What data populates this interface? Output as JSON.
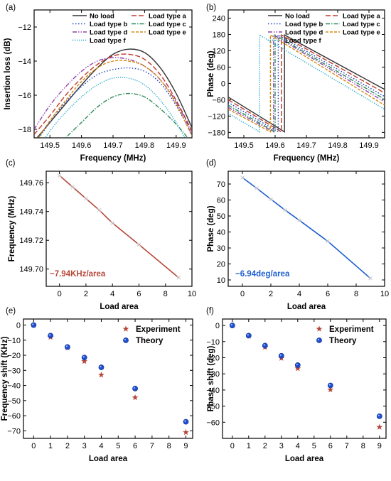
{
  "chart_data": [
    {
      "panel": "(a)",
      "type": "line",
      "xlabel": "Frequency (MHz)",
      "ylabel": "Insertion loss (dB)",
      "xlim": [
        149.45,
        149.95
      ],
      "ylim": [
        -18.5,
        -11.0
      ],
      "xticks": [
        149.5,
        149.6,
        149.7,
        149.8,
        149.9
      ],
      "yticks": [
        -18,
        -16,
        -14,
        -12
      ],
      "x": [
        149.45,
        149.5,
        149.55,
        149.6,
        149.65,
        149.7,
        149.75,
        149.8,
        149.85,
        149.9,
        149.95
      ],
      "legend": "top-right",
      "series": [
        {
          "name": "No load",
          "color": "#333333",
          "dash": "solid",
          "values": [
            -18.7,
            -17.6,
            -16.5,
            -15.4,
            -14.4,
            -13.6,
            -13.3,
            -13.5,
            -14.4,
            -15.9,
            -17.9
          ]
        },
        {
          "name": "Load type a",
          "color": "#c0392b",
          "dash": "longdash",
          "values": [
            -18.3,
            -17.2,
            -16.0,
            -15.0,
            -14.2,
            -13.7,
            -13.6,
            -13.9,
            -14.8,
            -16.3,
            -18.1
          ]
        },
        {
          "name": "Load type b",
          "color": "#1f3fbf",
          "dash": "dot",
          "values": [
            -18.9,
            -17.6,
            -16.4,
            -15.5,
            -14.8,
            -14.5,
            -14.4,
            -14.6,
            -15.3,
            -16.6,
            -18.3
          ]
        },
        {
          "name": "Load type c",
          "color": "#2e8b57",
          "dash": "dashdot",
          "values": [
            -20.5,
            -19.5,
            -18.5,
            -17.6,
            -16.7,
            -16.1,
            -15.9,
            -16.1,
            -16.8,
            -17.7,
            -18.8
          ]
        },
        {
          "name": "Load type d",
          "color": "#8e44ad",
          "dash": "dashdotdot",
          "values": [
            -18.0,
            -16.6,
            -15.5,
            -14.6,
            -14.0,
            -13.8,
            -13.9,
            -14.3,
            -15.1,
            -16.4,
            -18.2
          ]
        },
        {
          "name": "Load type e",
          "color": "#d68910",
          "dash": "shortdash",
          "values": [
            -18.9,
            -17.5,
            -16.3,
            -15.2,
            -14.4,
            -14.0,
            -14.0,
            -14.3,
            -15.1,
            -16.5,
            -18.4
          ]
        },
        {
          "name": "Load type f",
          "color": "#1aa6c9",
          "dash": "shortdot",
          "values": [
            -19.5,
            -18.1,
            -17.0,
            -16.1,
            -15.4,
            -15.0,
            -15.0,
            -15.4,
            -16.3,
            -17.6,
            -19.3
          ]
        }
      ]
    },
    {
      "panel": "(b)",
      "type": "line",
      "xlabel": "Frequency (MHz)",
      "ylabel": "Phase (deg)",
      "xlim": [
        149.45,
        149.95
      ],
      "ylim": [
        -200,
        270
      ],
      "xticks": [
        149.5,
        149.6,
        149.7,
        149.8,
        149.9
      ],
      "yticks": [
        -180,
        -120,
        -60,
        0,
        60,
        120,
        180,
        240
      ],
      "legend": "top-right",
      "series": [
        {
          "name": "No load",
          "color": "#333333",
          "dash": "solid",
          "jump": 149.63,
          "start": -50,
          "low": -178,
          "high": 178,
          "end": -22
        },
        {
          "name": "Load type a",
          "color": "#c0392b",
          "dash": "longdash",
          "jump": 149.62,
          "start": -60,
          "low": -178,
          "high": 178,
          "end": -35
        },
        {
          "name": "Load type b",
          "color": "#1f3fbf",
          "dash": "dot",
          "jump": 149.61,
          "start": -70,
          "low": -178,
          "high": 178,
          "end": -48
        },
        {
          "name": "Load type c",
          "color": "#2e8b57",
          "dash": "dashdot",
          "jump": 149.6,
          "start": -80,
          "low": -178,
          "high": 178,
          "end": -58
        },
        {
          "name": "Load type d",
          "color": "#8e44ad",
          "dash": "dashdotdot",
          "jump": 149.595,
          "start": -88,
          "low": -178,
          "high": 178,
          "end": -68
        },
        {
          "name": "Load type e",
          "color": "#d68910",
          "dash": "shortdash",
          "jump": 149.585,
          "start": -95,
          "low": -178,
          "high": 178,
          "end": -80
        },
        {
          "name": "Load type f",
          "color": "#1aa6c9",
          "dash": "shortdot",
          "jump": 149.55,
          "start": -110,
          "low": -178,
          "high": 178,
          "end": -95
        }
      ]
    },
    {
      "panel": "(c)",
      "type": "line",
      "xlabel": "Load area",
      "ylabel": "Frequency (MHz)",
      "xlim": [
        -1,
        10
      ],
      "ylim": [
        149.688,
        149.768
      ],
      "xticks": [
        0,
        2,
        4,
        6,
        8,
        10
      ],
      "yticks": [
        149.7,
        149.72,
        149.74,
        149.76
      ],
      "x": [
        0,
        1,
        2,
        3,
        4,
        6,
        9
      ],
      "series": [
        {
          "name": "",
          "color": "#b5473a",
          "values": [
            149.765,
            149.757,
            149.749,
            149.741,
            149.732,
            149.717,
            149.694
          ]
        }
      ],
      "annotation": "−7.94KHz/area"
    },
    {
      "panel": "(d)",
      "type": "line",
      "xlabel": "Load area",
      "ylabel": "Phase (deg)",
      "xlim": [
        -1,
        10
      ],
      "ylim": [
        6,
        78
      ],
      "xticks": [
        0,
        2,
        4,
        6,
        8,
        10
      ],
      "yticks": [
        10,
        20,
        30,
        40,
        50,
        60,
        70
      ],
      "x": [
        0,
        1,
        2,
        3,
        4,
        6,
        9
      ],
      "series": [
        {
          "name": "",
          "color": "#1f5fcf",
          "values": [
            74.0,
            67.4,
            60.5,
            53.7,
            47.3,
            34.2,
            11.0
          ]
        }
      ],
      "annotation": "−6.94deg/area"
    },
    {
      "panel": "(e)",
      "type": "scatter",
      "xlabel": "Load area",
      "ylabel": "Frequency shift (KHz)",
      "xlim": [
        -0.6,
        9.4
      ],
      "ylim": [
        -75,
        4
      ],
      "xticks": [
        0,
        1,
        2,
        3,
        4,
        5,
        6,
        7,
        8,
        9
      ],
      "yticks": [
        0,
        -10,
        -20,
        -30,
        -40,
        -50,
        -60,
        -70
      ],
      "legend": "top-right",
      "series": [
        {
          "name": "Experiment",
          "marker": "star",
          "color": "#b5473a",
          "x": [
            0,
            1,
            2,
            3,
            4,
            6,
            9
          ],
          "values": [
            0,
            -8,
            -15,
            -24,
            -33,
            -48,
            -71
          ]
        },
        {
          "name": "Theory",
          "marker": "circle",
          "color": "#1f4fd0",
          "x": [
            0,
            1,
            2,
            3,
            4,
            6,
            9
          ],
          "values": [
            0,
            -7,
            -14.5,
            -21.5,
            -28,
            -42,
            -64
          ]
        }
      ]
    },
    {
      "panel": "(f)",
      "type": "scatter",
      "xlabel": "Load area",
      "ylabel": "Phase shift (deg)",
      "xlim": [
        -0.6,
        9.4
      ],
      "ylim": [
        -70,
        4
      ],
      "xticks": [
        0,
        1,
        2,
        3,
        4,
        5,
        6,
        7,
        8,
        9
      ],
      "yticks": [
        0,
        -10,
        -20,
        -30,
        -40,
        -50,
        -60
      ],
      "legend": "top-right",
      "series": [
        {
          "name": "Experiment",
          "marker": "star",
          "color": "#b5473a",
          "x": [
            0,
            1,
            2,
            3,
            4,
            6,
            9
          ],
          "values": [
            0,
            -6.6,
            -13.5,
            -20.3,
            -26.7,
            -39.8,
            -63
          ]
        },
        {
          "name": "Theory",
          "marker": "circle",
          "color": "#1f4fd0",
          "x": [
            0,
            1,
            2,
            3,
            4,
            6,
            9
          ],
          "values": [
            0,
            -6.3,
            -12.5,
            -18.8,
            -24.6,
            -37.2,
            -56.3
          ]
        }
      ]
    }
  ]
}
